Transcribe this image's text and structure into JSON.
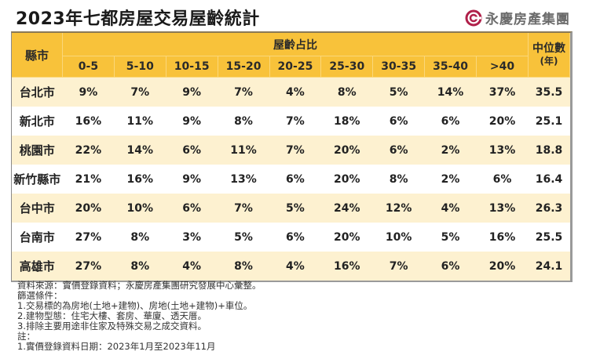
{
  "title": "2023年七都房屋交易屋齡統計",
  "logo": {
    "icon": "yungching-circle-logo-icon",
    "text": "永慶房產集團",
    "color": "#b0204a"
  },
  "colors": {
    "header": "#f8c23a",
    "row_odd": "#fdf1d0",
    "row_even": "#ffffff",
    "text": "#222222"
  },
  "table": {
    "region_header": "縣市",
    "group_header": "屋齡占比",
    "median_header": "中位數",
    "median_unit": "(年)",
    "age_columns": [
      "0-5",
      "5-10",
      "10-15",
      "15-20",
      "20-25",
      "25-30",
      "30-35",
      "35-40",
      ">40"
    ],
    "rows": [
      {
        "region": "台北市",
        "values": [
          "9%",
          "7%",
          "9%",
          "7%",
          "4%",
          "8%",
          "5%",
          "14%",
          "37%"
        ],
        "median": "35.5"
      },
      {
        "region": "新北市",
        "values": [
          "16%",
          "11%",
          "9%",
          "8%",
          "7%",
          "18%",
          "6%",
          "6%",
          "20%"
        ],
        "median": "25.1"
      },
      {
        "region": "桃園市",
        "values": [
          "22%",
          "14%",
          "6%",
          "11%",
          "7%",
          "20%",
          "6%",
          "2%",
          "13%"
        ],
        "median": "18.8"
      },
      {
        "region": "新竹縣市",
        "values": [
          "21%",
          "16%",
          "9%",
          "13%",
          "6%",
          "20%",
          "8%",
          "2%",
          "6%"
        ],
        "median": "16.4"
      },
      {
        "region": "台中市",
        "values": [
          "20%",
          "10%",
          "6%",
          "7%",
          "5%",
          "24%",
          "12%",
          "4%",
          "13%"
        ],
        "median": "26.3"
      },
      {
        "region": "台南市",
        "values": [
          "27%",
          "8%",
          "3%",
          "5%",
          "6%",
          "20%",
          "10%",
          "5%",
          "16%"
        ],
        "median": "25.5"
      },
      {
        "region": "高雄市",
        "values": [
          "27%",
          "8%",
          "4%",
          "8%",
          "4%",
          "16%",
          "7%",
          "6%",
          "20%"
        ],
        "median": "24.1"
      }
    ]
  },
  "notes": [
    "資料來源：實價登錄資料；永慶房產集團研究發展中心彙整。",
    "篩選條件：",
    "1.交易標的為房地(土地+建物)、房地(土地+建物)+車位。",
    "2.建物型態：住宅大樓、套房、華廈、透天厝。",
    "3.排除主要用途非住家及特殊交易之成交資料。",
    "註：",
    "1.實價登錄資料日期：2023年1月至2023年11月"
  ],
  "chart_data": {
    "type": "table",
    "title": "2023年七都房屋交易屋齡統計",
    "columns": [
      "縣市",
      "0-5",
      "5-10",
      "10-15",
      "15-20",
      "20-25",
      "25-30",
      "30-35",
      "35-40",
      ">40",
      "中位數(年)"
    ],
    "categories": [
      "台北市",
      "新北市",
      "桃園市",
      "新竹縣市",
      "台中市",
      "台南市",
      "高雄市"
    ],
    "series": [
      {
        "name": "0-5",
        "values": [
          9,
          16,
          22,
          21,
          20,
          27,
          27
        ]
      },
      {
        "name": "5-10",
        "values": [
          7,
          11,
          14,
          16,
          10,
          8,
          8
        ]
      },
      {
        "name": "10-15",
        "values": [
          9,
          9,
          6,
          9,
          6,
          3,
          4
        ]
      },
      {
        "name": "15-20",
        "values": [
          7,
          8,
          11,
          13,
          7,
          5,
          8
        ]
      },
      {
        "name": "20-25",
        "values": [
          4,
          7,
          7,
          6,
          5,
          6,
          4
        ]
      },
      {
        "name": "25-30",
        "values": [
          8,
          18,
          20,
          20,
          24,
          20,
          16
        ]
      },
      {
        "name": "30-35",
        "values": [
          5,
          6,
          6,
          8,
          12,
          10,
          7
        ]
      },
      {
        "name": "35-40",
        "values": [
          14,
          6,
          2,
          2,
          4,
          5,
          6
        ]
      },
      {
        "name": ">40",
        "values": [
          37,
          20,
          13,
          6,
          13,
          16,
          20
        ]
      },
      {
        "name": "中位數(年)",
        "values": [
          35.5,
          25.1,
          18.8,
          16.4,
          26.3,
          25.5,
          24.1
        ]
      }
    ],
    "unit": "% (屋齡占比); 年 (中位數)"
  }
}
